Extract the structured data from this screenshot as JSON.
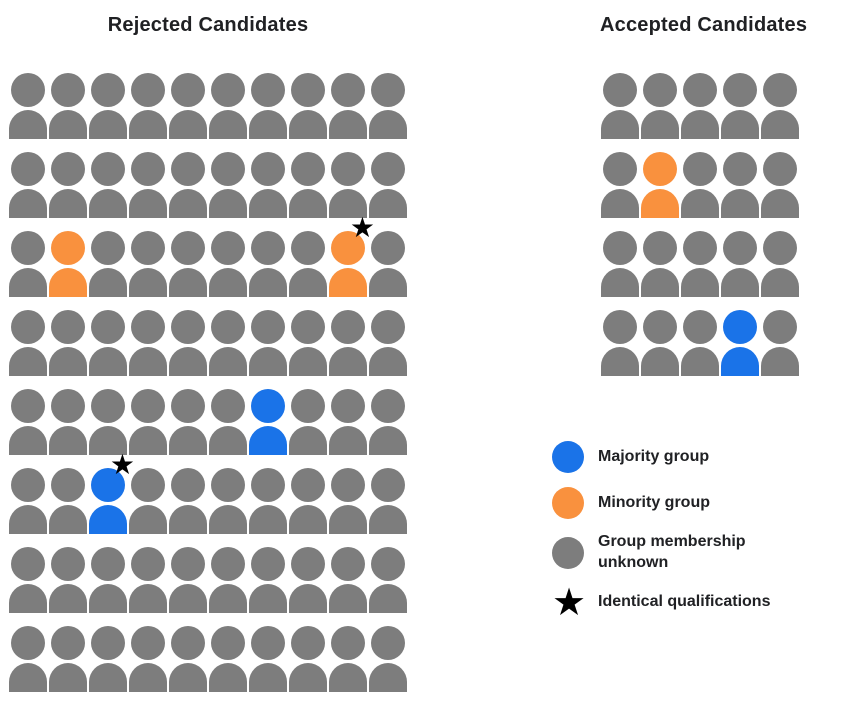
{
  "colors": {
    "majority": "#1A73E8",
    "minority": "#F9913E",
    "unknown": "#7D7D7D",
    "star": "#000000",
    "text": "#202124"
  },
  "glyphs": {
    "star": "★"
  },
  "rejected": {
    "title": "Rejected Candidates",
    "columns": 10,
    "rows": 8,
    "total_people": 80,
    "special": [
      {
        "row": 2,
        "col": 1,
        "group": "minority",
        "star": false
      },
      {
        "row": 2,
        "col": 8,
        "group": "minority",
        "star": true
      },
      {
        "row": 4,
        "col": 6,
        "group": "majority",
        "star": false
      },
      {
        "row": 5,
        "col": 2,
        "group": "majority",
        "star": true
      }
    ]
  },
  "accepted": {
    "title": "Accepted Candidates",
    "columns": 5,
    "rows": 4,
    "total_people": 20,
    "special": [
      {
        "row": 1,
        "col": 1,
        "group": "minority",
        "star": false
      },
      {
        "row": 3,
        "col": 3,
        "group": "majority",
        "star": false
      }
    ]
  },
  "legend": {
    "items": [
      {
        "type": "circle",
        "color_key": "majority",
        "label": "Majority group"
      },
      {
        "type": "circle",
        "color_key": "minority",
        "label": "Minority group"
      },
      {
        "type": "circle",
        "color_key": "unknown",
        "label": "Group membership unknown"
      },
      {
        "type": "star",
        "color_key": "star",
        "label": "Identical qualifications"
      }
    ]
  }
}
